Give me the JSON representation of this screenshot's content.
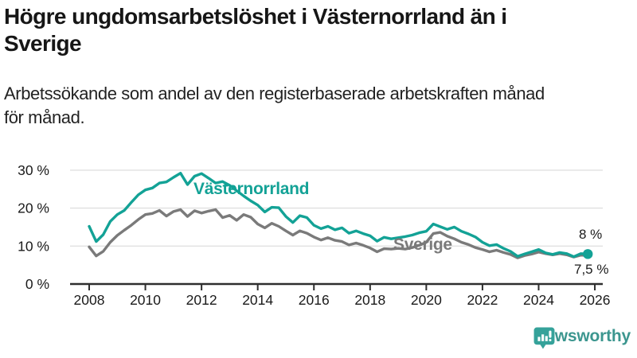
{
  "header": {
    "title_lines": [
      "Högre ungdomsarbetslöshet i Västernorrland än i",
      "Sverige"
    ],
    "subtitle_lines": [
      "Arbetssökande som andel av den registerbaserade arbetskraften månad",
      "för månad."
    ]
  },
  "chart_data": {
    "type": "line",
    "x_start": 2008,
    "x_step_years": 0.25,
    "x_tick_years": [
      2008,
      2010,
      2012,
      2014,
      2016,
      2018,
      2020,
      2022,
      2024,
      2026
    ],
    "y_ticks": [
      0,
      10,
      20,
      30
    ],
    "y_unit": "%",
    "ylim": [
      0,
      32
    ],
    "grid": true,
    "legend_position": "inline-labels",
    "series": [
      {
        "name": "Västernorrland",
        "color": "#13A296",
        "end_label": "8 %",
        "end_dot": true,
        "values": [
          15.2,
          11.2,
          13.0,
          16.5,
          18.3,
          19.4,
          21.5,
          23.5,
          24.8,
          25.3,
          26.6,
          26.9,
          28.1,
          29.2,
          26.2,
          28.4,
          29.1,
          27.9,
          26.6,
          27.0,
          26.0,
          24.6,
          23.2,
          21.9,
          20.8,
          19.0,
          20.2,
          20.1,
          17.8,
          16.2,
          18.0,
          17.5,
          15.5,
          14.6,
          15.2,
          14.3,
          14.8,
          13.4,
          14.0,
          13.3,
          12.7,
          11.3,
          12.3,
          11.9,
          12.2,
          12.5,
          12.9,
          13.5,
          13.9,
          15.8,
          15.1,
          14.4,
          15.0,
          13.9,
          13.2,
          12.4,
          11.0,
          10.1,
          10.4,
          9.4,
          8.6,
          7.3,
          7.9,
          8.5,
          9.1,
          8.2,
          7.8,
          8.3,
          8.0,
          7.2,
          8.0,
          7.9
        ]
      },
      {
        "name": "Sverige",
        "color": "#7A7A7A",
        "end_label": "7,5 %",
        "end_dot": false,
        "values": [
          9.8,
          7.4,
          8.6,
          11.0,
          12.8,
          14.2,
          15.5,
          17.0,
          18.3,
          18.6,
          19.4,
          17.9,
          19.1,
          19.6,
          17.8,
          19.3,
          18.7,
          19.2,
          19.6,
          17.5,
          18.1,
          16.8,
          18.3,
          17.6,
          15.8,
          14.8,
          16.0,
          15.2,
          14.0,
          12.9,
          14.0,
          13.4,
          12.4,
          11.6,
          12.2,
          11.5,
          11.2,
          10.3,
          10.8,
          10.2,
          9.5,
          8.5,
          9.3,
          9.2,
          9.4,
          9.2,
          9.6,
          10.2,
          11.0,
          13.3,
          13.6,
          12.6,
          11.9,
          11.0,
          10.4,
          9.6,
          9.1,
          8.5,
          8.9,
          8.3,
          7.8,
          6.9,
          7.5,
          7.9,
          8.4,
          8.0,
          7.7,
          8.0,
          7.7,
          7.1,
          7.6,
          7.5
        ]
      }
    ]
  },
  "footer": {
    "brand": "Newsworthy",
    "logo_icon": "bar-chart-speech-bubble-icon",
    "brand_text_color": "#3C968F",
    "brand_icon_color": "#35A29A"
  }
}
